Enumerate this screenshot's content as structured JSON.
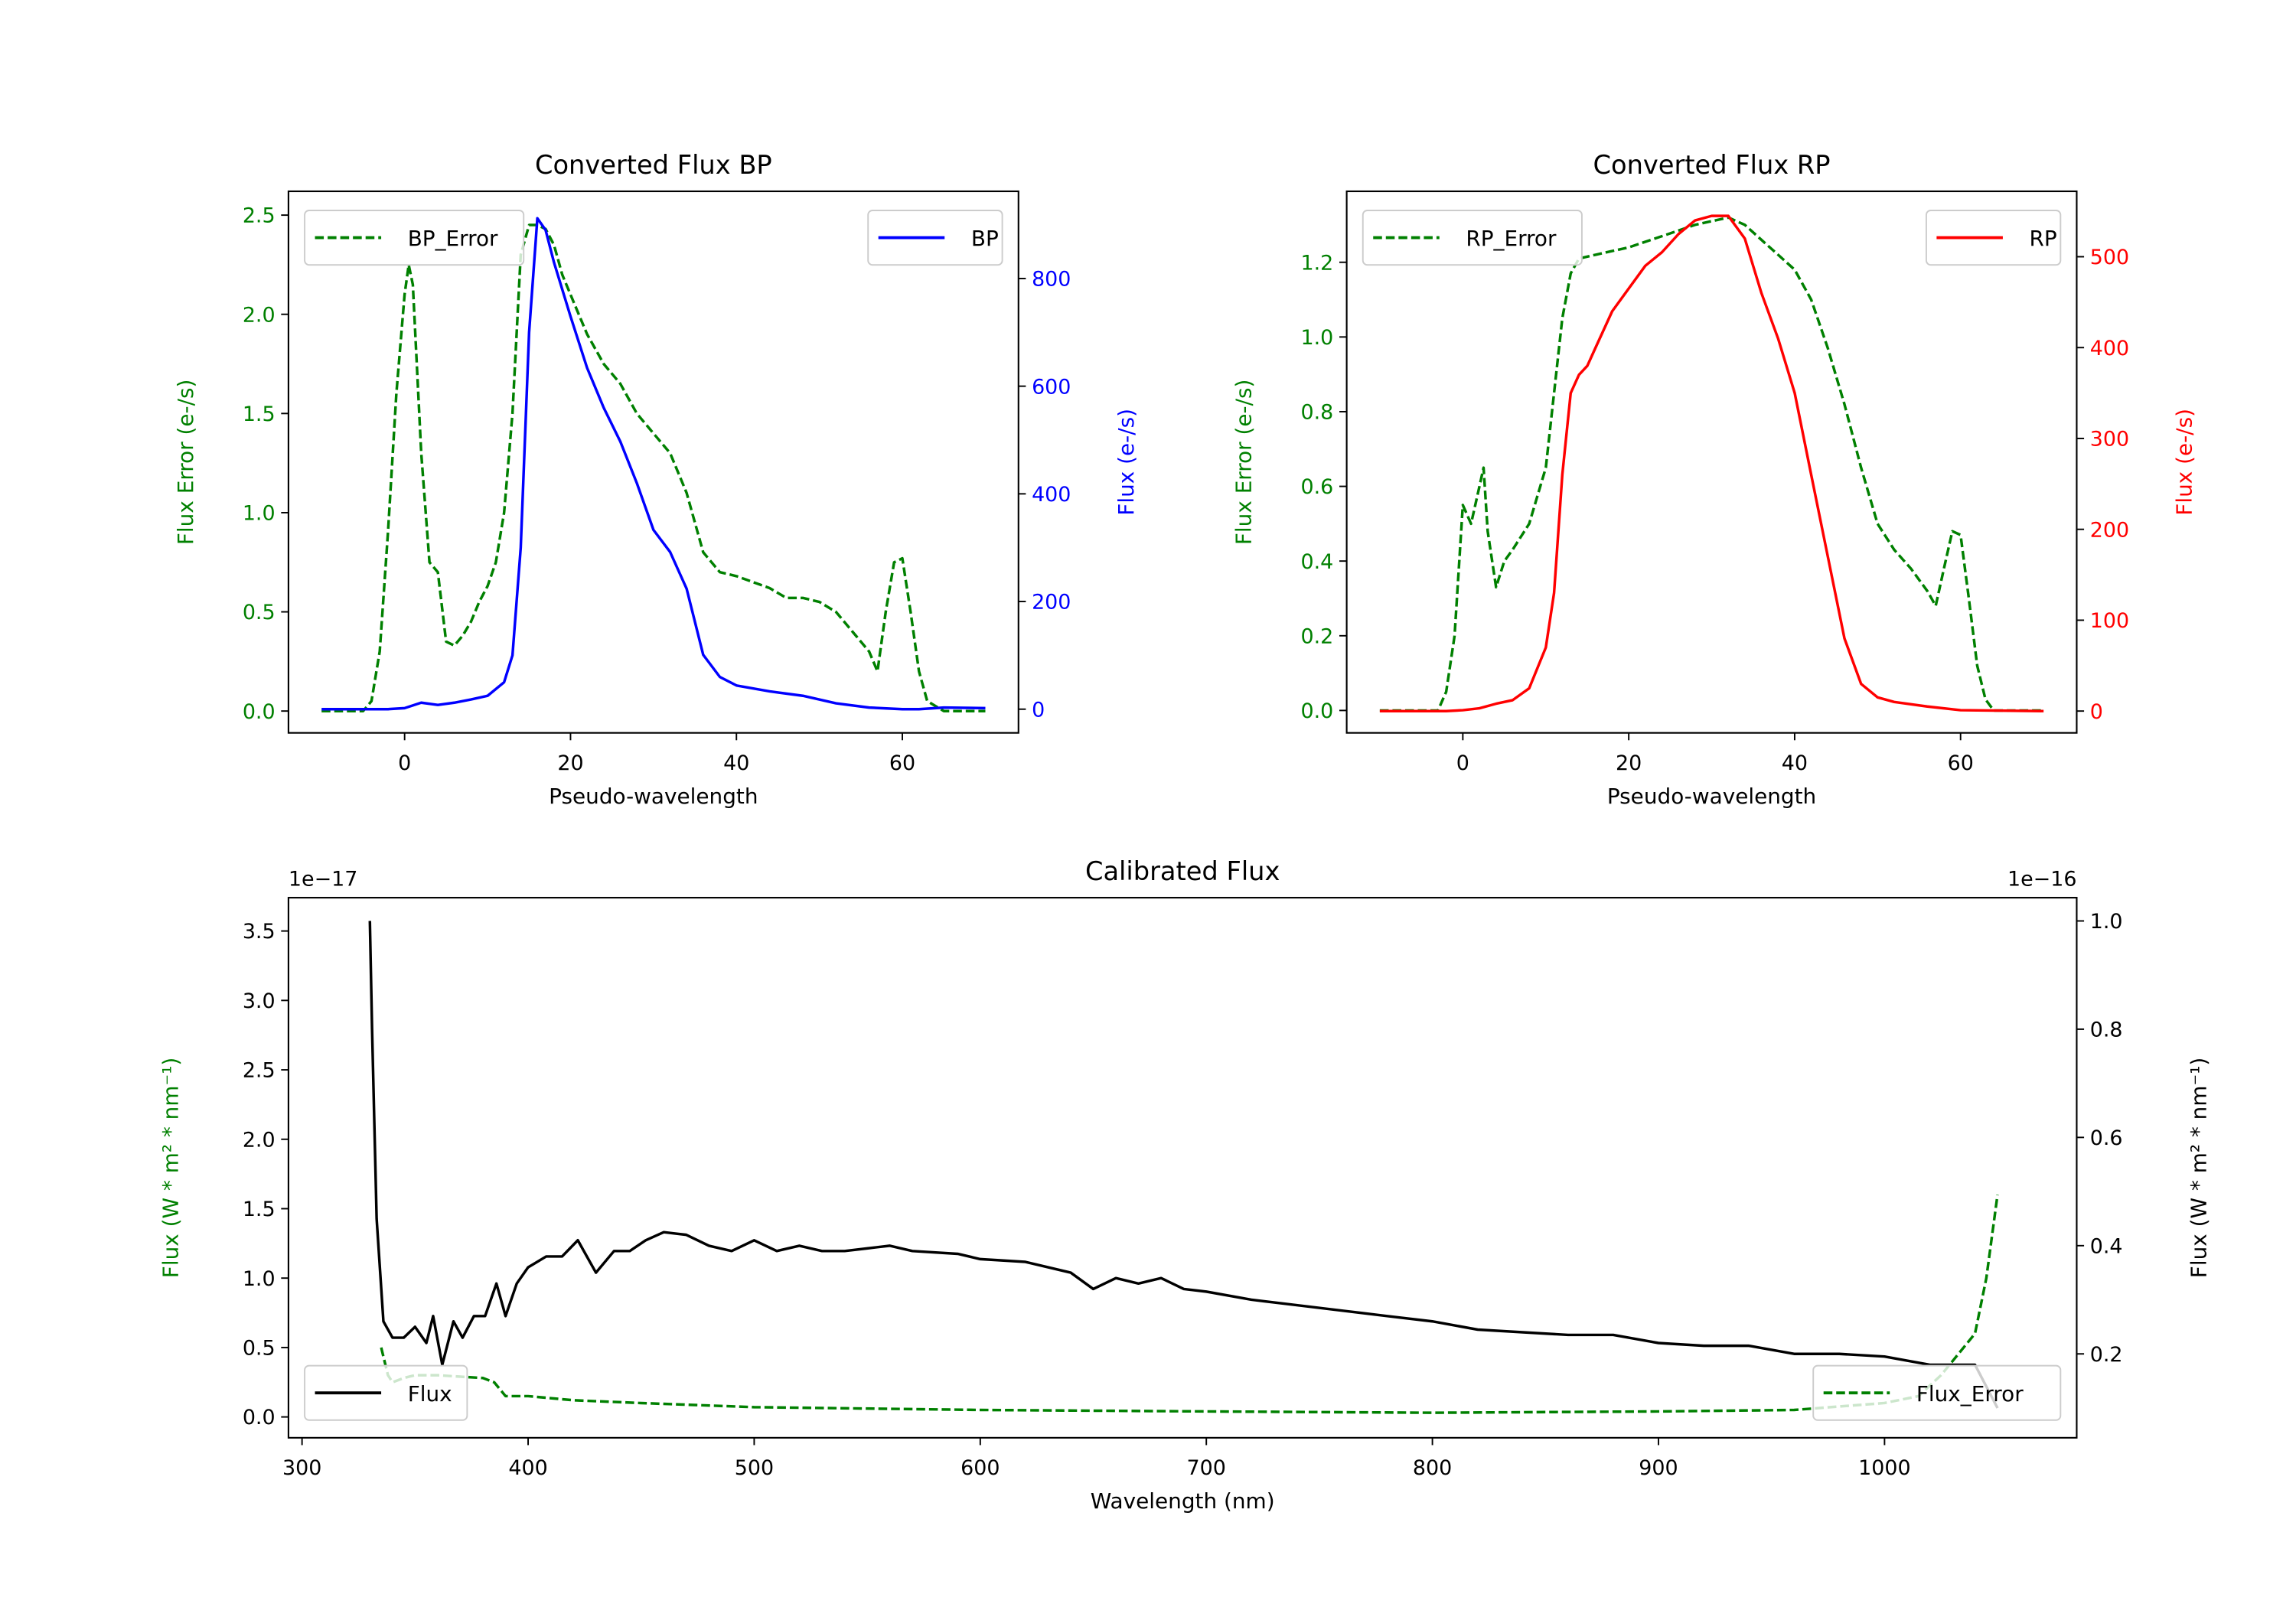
{
  "chart_data": [
    {
      "type": "line",
      "title": "Converted Flux BP",
      "xlabel": "Pseudo-wavelength",
      "ylabel_left": "Flux Error (e-/s)",
      "ylabel_right": "Flux (e-/s)",
      "left_color": "#008000",
      "right_color": "#0000ff",
      "left_tick_color": "#008000",
      "right_tick_color": "#0000ff",
      "xlim": [
        -14,
        74
      ],
      "ylim_left": [
        -0.11,
        2.62
      ],
      "ylim_right": [
        -44,
        962
      ],
      "xticks": [
        0,
        20,
        40,
        60
      ],
      "xtick_labels": [
        "0",
        "20",
        "40",
        "60"
      ],
      "yticks_left": [
        0,
        0.5,
        1.0,
        1.5,
        2.0,
        2.5
      ],
      "ytick_labels_left": [
        "0.0",
        "0.5",
        "1.0",
        "1.5",
        "2.0",
        "2.5"
      ],
      "yticks_right": [
        0,
        200,
        400,
        600,
        800
      ],
      "ytick_labels_right": [
        "0",
        "200",
        "400",
        "600",
        "800"
      ],
      "left_offset": "",
      "right_offset": "",
      "series": [
        {
          "name": "BP_Error",
          "axis": "left",
          "color": "#008000",
          "dashed": true,
          "legend": "upper-left",
          "x": [
            -10,
            -5,
            -4,
            -3,
            -2,
            -1,
            0,
            0.5,
            1,
            2,
            3,
            4,
            5,
            6,
            7,
            8,
            9,
            10,
            11,
            12,
            13,
            14,
            15,
            16,
            17,
            18,
            19,
            20,
            22,
            24,
            26,
            28,
            30,
            32,
            34,
            36,
            38,
            40,
            44,
            46,
            48,
            50,
            52,
            54,
            56,
            57,
            58,
            59,
            60,
            61,
            62,
            63,
            65,
            70
          ],
          "y": [
            0,
            0,
            0.05,
            0.3,
            0.9,
            1.6,
            2.1,
            2.25,
            2.15,
            1.3,
            0.75,
            0.7,
            0.35,
            0.33,
            0.38,
            0.45,
            0.55,
            0.63,
            0.75,
            1.0,
            1.5,
            2.3,
            2.45,
            2.45,
            2.43,
            2.35,
            2.2,
            2.1,
            1.9,
            1.75,
            1.65,
            1.5,
            1.4,
            1.3,
            1.1,
            0.8,
            0.7,
            0.68,
            0.62,
            0.57,
            0.57,
            0.55,
            0.5,
            0.4,
            0.3,
            0.2,
            0.5,
            0.75,
            0.77,
            0.5,
            0.2,
            0.05,
            0,
            0
          ]
        },
        {
          "name": "BP",
          "axis": "right",
          "color": "#0000ff",
          "dashed": false,
          "legend": "upper-right",
          "x": [
            -10,
            -5,
            -2,
            0,
            2,
            4,
            6,
            8,
            10,
            12,
            13,
            14,
            15,
            16,
            17,
            18,
            20,
            22,
            24,
            26,
            28,
            30,
            32,
            34,
            36,
            38,
            40,
            44,
            48,
            52,
            56,
            60,
            62,
            65,
            70
          ],
          "y": [
            0,
            0,
            0,
            2,
            12,
            8,
            12,
            18,
            25,
            50,
            100,
            300,
            700,
            912,
            890,
            830,
            730,
            634,
            560,
            497,
            420,
            333,
            292,
            224,
            101,
            60,
            44,
            33,
            25,
            11,
            3,
            0,
            0,
            3,
            2
          ]
        }
      ]
    },
    {
      "type": "line",
      "title": "Converted Flux RP",
      "xlabel": "Pseudo-wavelength",
      "ylabel_left": "Flux Error (e-/s)",
      "ylabel_right": "Flux (e-/s)",
      "left_color": "#008000",
      "right_color": "#ff0000",
      "left_tick_color": "#008000",
      "right_tick_color": "#ff0000",
      "xlim": [
        -14,
        74
      ],
      "ylim_left": [
        -0.06,
        1.39
      ],
      "ylim_right": [
        -24,
        572
      ],
      "xticks": [
        0,
        20,
        40,
        60
      ],
      "xtick_labels": [
        "0",
        "20",
        "40",
        "60"
      ],
      "yticks_left": [
        0,
        0.2,
        0.4,
        0.6,
        0.8,
        1.0,
        1.2
      ],
      "ytick_labels_left": [
        "0.0",
        "0.2",
        "0.4",
        "0.6",
        "0.8",
        "1.0",
        "1.2"
      ],
      "yticks_right": [
        0,
        100,
        200,
        300,
        400,
        500
      ],
      "ytick_labels_right": [
        "0",
        "100",
        "200",
        "300",
        "400",
        "500"
      ],
      "left_offset": "",
      "right_offset": "",
      "series": [
        {
          "name": "RP_Error",
          "axis": "left",
          "color": "#008000",
          "dashed": true,
          "legend": "upper-left",
          "x": [
            -10,
            -3,
            -2,
            -1,
            0,
            1,
            2,
            2.5,
            3,
            4,
            5,
            6,
            8,
            10,
            11,
            12,
            13,
            14,
            16,
            20,
            24,
            28,
            32,
            34,
            36,
            38,
            40,
            42,
            44,
            46,
            48,
            50,
            52,
            54,
            56,
            57,
            58,
            59,
            60,
            61,
            62,
            63,
            64,
            70
          ],
          "y": [
            0,
            0,
            0.05,
            0.2,
            0.55,
            0.5,
            0.6,
            0.65,
            0.48,
            0.33,
            0.4,
            0.43,
            0.5,
            0.65,
            0.85,
            1.05,
            1.17,
            1.21,
            1.22,
            1.24,
            1.27,
            1.3,
            1.32,
            1.3,
            1.26,
            1.22,
            1.18,
            1.1,
            0.97,
            0.82,
            0.65,
            0.5,
            0.43,
            0.38,
            0.32,
            0.28,
            0.38,
            0.48,
            0.47,
            0.3,
            0.12,
            0.03,
            0,
            0
          ]
        },
        {
          "name": "RP",
          "axis": "right",
          "color": "#ff0000",
          "dashed": false,
          "legend": "upper-right",
          "x": [
            -10,
            -2,
            0,
            2,
            4,
            6,
            8,
            10,
            11,
            12,
            13,
            14,
            15,
            16,
            18,
            20,
            22,
            24,
            26,
            28,
            30,
            32,
            34,
            36,
            38,
            40,
            42,
            44,
            46,
            48,
            50,
            52,
            56,
            60,
            70
          ],
          "y": [
            0,
            0,
            1,
            3,
            8,
            12,
            25,
            70,
            130,
            260,
            350,
            370,
            380,
            400,
            440,
            465,
            490,
            505,
            525,
            540,
            545,
            545,
            520,
            460,
            410,
            350,
            260,
            170,
            80,
            30,
            15,
            10,
            5,
            1,
            0
          ]
        }
      ]
    },
    {
      "type": "line",
      "title": "Calibrated Flux",
      "xlabel": "Wavelength (nm)",
      "ylabel_left": "Flux (W * m² * nm⁻¹)",
      "ylabel_right": "Flux (W * m² * nm⁻¹)",
      "left_color": "#008000",
      "right_color": "#000000",
      "left_tick_color": "#008000",
      "right_tick_color": "#000000",
      "xlim": [
        294,
        1085
      ],
      "ylim_left": [
        -0.15,
        3.74
      ],
      "ylim_right": [
        0.045,
        1.043
      ],
      "xticks": [
        300,
        400,
        500,
        600,
        700,
        800,
        900,
        1000
      ],
      "xtick_labels": [
        "300",
        "400",
        "500",
        "600",
        "700",
        "800",
        "900",
        "1000"
      ],
      "yticks_left": [
        0,
        0.5,
        1.0,
        1.5,
        2.0,
        2.5,
        3.0,
        3.5
      ],
      "ytick_labels_left": [
        "0.0",
        "0.5",
        "1.0",
        "1.5",
        "2.0",
        "2.5",
        "3.0",
        "3.5"
      ],
      "yticks_right": [
        0.2,
        0.4,
        0.6,
        0.8,
        1.0
      ],
      "ytick_labels_right": [
        "0.2",
        "0.4",
        "0.6",
        "0.8",
        "1.0"
      ],
      "left_offset": "1e−17",
      "right_offset": "1e−16",
      "series": [
        {
          "name": "Flux_Error",
          "axis": "left",
          "color": "#008000",
          "dashed": true,
          "legend": "lower-right",
          "x": [
            335,
            338,
            340,
            345,
            350,
            360,
            370,
            380,
            385,
            390,
            400,
            420,
            450,
            500,
            600,
            700,
            800,
            900,
            960,
            1000,
            1015,
            1025,
            1030,
            1040,
            1045,
            1050
          ],
          "y": [
            0.5,
            0.3,
            0.25,
            0.28,
            0.3,
            0.3,
            0.29,
            0.28,
            0.25,
            0.15,
            0.15,
            0.12,
            0.1,
            0.07,
            0.05,
            0.04,
            0.03,
            0.04,
            0.05,
            0.1,
            0.15,
            0.3,
            0.4,
            0.6,
            1.0,
            1.6
          ]
        },
        {
          "name": "Flux",
          "axis": "right",
          "color": "#000000",
          "dashed": false,
          "legend": "lower-left",
          "x": [
            330,
            331,
            333,
            336,
            340,
            345,
            350,
            355,
            358,
            362,
            367,
            371,
            376,
            381,
            386,
            390,
            395,
            400,
            408,
            415,
            422,
            430,
            438,
            445,
            452,
            460,
            470,
            480,
            490,
            500,
            510,
            520,
            530,
            540,
            550,
            560,
            570,
            590,
            600,
            620,
            640,
            650,
            660,
            670,
            680,
            690,
            700,
            720,
            740,
            760,
            780,
            800,
            820,
            840,
            860,
            880,
            900,
            920,
            940,
            960,
            980,
            1000,
            1020,
            1040,
            1050
          ],
          "y": [
            1.0,
            0.8,
            0.45,
            0.26,
            0.23,
            0.23,
            0.25,
            0.22,
            0.27,
            0.18,
            0.26,
            0.23,
            0.27,
            0.27,
            0.33,
            0.27,
            0.33,
            0.36,
            0.38,
            0.38,
            0.41,
            0.35,
            0.39,
            0.39,
            0.41,
            0.425,
            0.42,
            0.4,
            0.39,
            0.41,
            0.39,
            0.4,
            0.39,
            0.39,
            0.395,
            0.4,
            0.39,
            0.385,
            0.375,
            0.37,
            0.35,
            0.32,
            0.34,
            0.33,
            0.34,
            0.32,
            0.315,
            0.3,
            0.29,
            0.28,
            0.27,
            0.26,
            0.245,
            0.24,
            0.235,
            0.235,
            0.22,
            0.215,
            0.215,
            0.2,
            0.2,
            0.195,
            0.18,
            0.18,
            0.1
          ]
        }
      ]
    }
  ]
}
